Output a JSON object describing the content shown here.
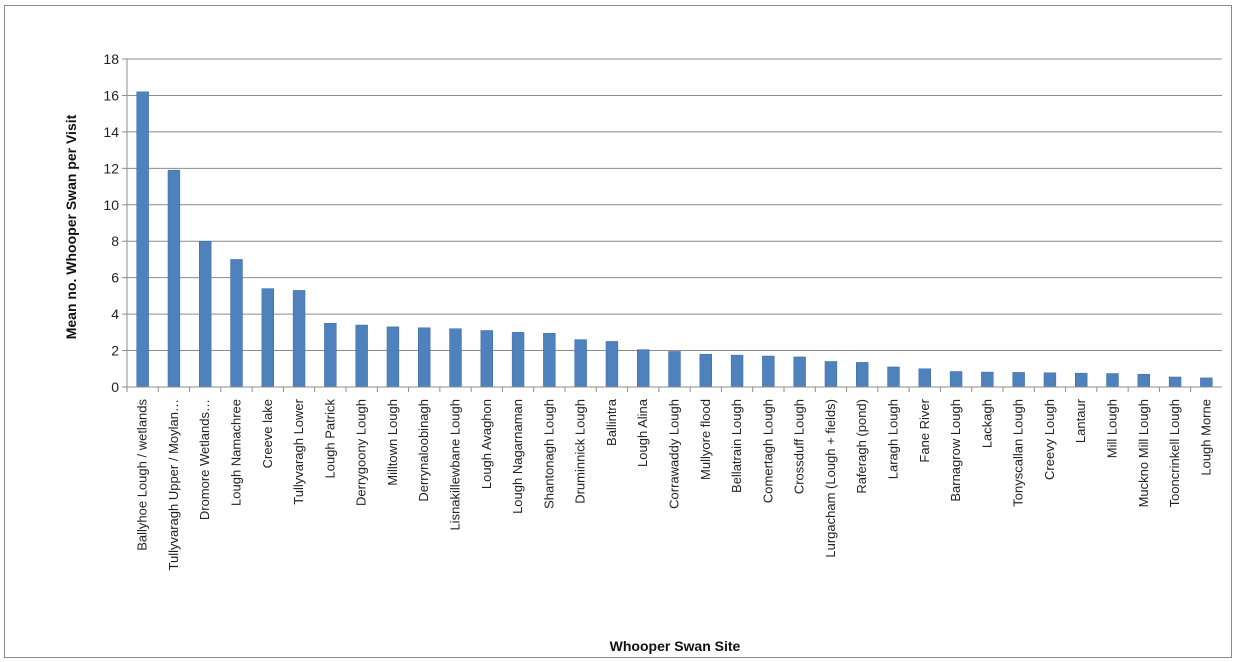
{
  "chart_data": {
    "type": "bar",
    "title": "",
    "xlabel": "Whooper Swan Site",
    "ylabel": "Mean no. Whooper Swan per Visit",
    "ylim": [
      0,
      18
    ],
    "yticks": [
      0,
      2,
      4,
      6,
      8,
      10,
      12,
      14,
      16,
      18
    ],
    "grid": true,
    "legend": "none",
    "bar_color": "#4f81bd",
    "categories": [
      "Ballyhoe Lough / wetlands",
      "Tullyvaragh Upper / Moylan…",
      "Dromore Wetlands…",
      "Lough Namachree",
      "Creeve lake",
      "Tullyvaragh Lower",
      "Lough Patrick",
      "Derrygoony Lough",
      "Milltown Lough",
      "Derrynaloobinagh",
      "Lisnakillewbane Lough",
      "Lough Avaghon",
      "Lough Nagarnaman",
      "Shantonagh Lough",
      "Druminnick Lough",
      "Ballintra",
      "Lough Alina",
      "Corrawaddy Lough",
      "Mullyore flood",
      "Bellatrain Lough",
      "Comertagh Lough",
      "Crossduff Lough",
      "Lurgacham (Lough + fields)",
      "Raferagh (pond)",
      "Laragh Lough",
      "Fane River",
      "Barnagrow Lough",
      "Lackagh",
      "Tonyscallan Lough",
      "Creevy Lough",
      "Lantaur",
      "Mill Lough",
      "Muckno Mill Lough",
      "Tooncrinkell Lough",
      "Lough Morne"
    ],
    "values": [
      16.2,
      11.9,
      8.0,
      7.0,
      5.4,
      5.3,
      3.5,
      3.4,
      3.3,
      3.25,
      3.2,
      3.1,
      3.0,
      2.95,
      2.6,
      2.5,
      2.05,
      1.95,
      1.8,
      1.75,
      1.7,
      1.65,
      1.4,
      1.35,
      1.1,
      1.0,
      0.85,
      0.82,
      0.8,
      0.78,
      0.76,
      0.74,
      0.7,
      0.55,
      0.5
    ]
  }
}
